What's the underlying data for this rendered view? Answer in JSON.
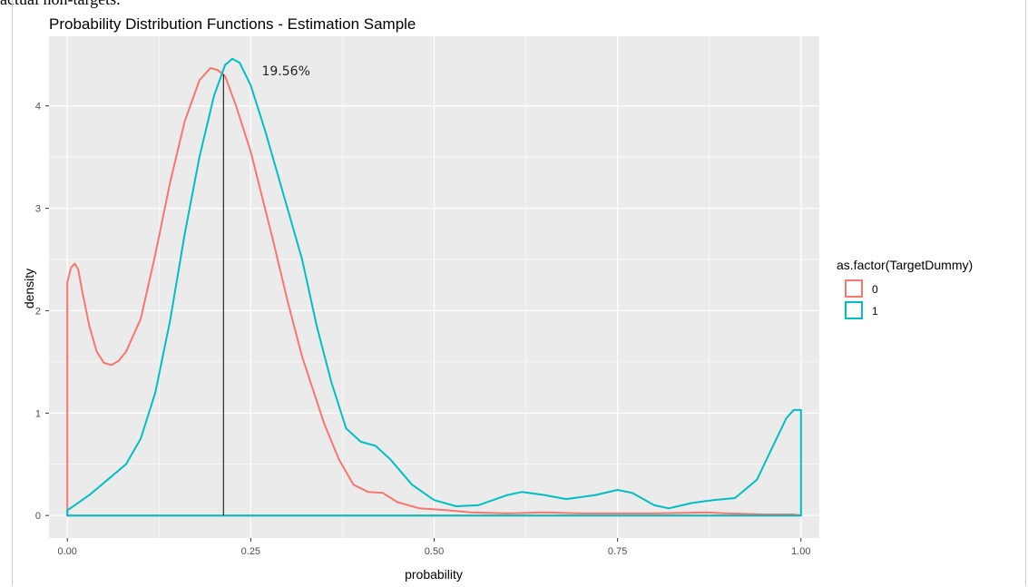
{
  "caption_fragment": "actual non-targets.",
  "chart_data": {
    "type": "line",
    "title": "Probability Distribution Functions - Estimation Sample",
    "xlabel": "probability",
    "ylabel": "density",
    "xlim": [
      -0.025,
      1.025
    ],
    "ylim": [
      -0.22,
      4.68
    ],
    "x_ticks": [
      0,
      0.25,
      0.5,
      0.75,
      1
    ],
    "x_tick_labels": [
      "0.00",
      "0.25",
      "0.50",
      "0.75",
      "1.00"
    ],
    "y_ticks": [
      0,
      1,
      2,
      3,
      4
    ],
    "y_tick_labels": [
      "0",
      "1",
      "2",
      "3",
      "4"
    ],
    "grid": true,
    "legend": {
      "title": "as.factor(TargetDummy)",
      "position": "right"
    },
    "vline": {
      "x": 0.2128,
      "y_top": 4.31
    },
    "annotation": {
      "text": "19.56%",
      "x": 0.265,
      "y": 4.3
    },
    "series": [
      {
        "name": "0",
        "color": "#F8766D",
        "points": [
          [
            0,
            2.28
          ],
          [
            0.005,
            2.42
          ],
          [
            0.01,
            2.46
          ],
          [
            0.015,
            2.4
          ],
          [
            0.02,
            2.2
          ],
          [
            0.03,
            1.85
          ],
          [
            0.04,
            1.6
          ],
          [
            0.05,
            1.49
          ],
          [
            0.06,
            1.47
          ],
          [
            0.07,
            1.51
          ],
          [
            0.08,
            1.6
          ],
          [
            0.1,
            1.92
          ],
          [
            0.12,
            2.55
          ],
          [
            0.14,
            3.25
          ],
          [
            0.16,
            3.85
          ],
          [
            0.18,
            4.25
          ],
          [
            0.195,
            4.37
          ],
          [
            0.205,
            4.35
          ],
          [
            0.215,
            4.29
          ],
          [
            0.23,
            4.0
          ],
          [
            0.25,
            3.55
          ],
          [
            0.28,
            2.7
          ],
          [
            0.3,
            2.1
          ],
          [
            0.32,
            1.55
          ],
          [
            0.35,
            0.9
          ],
          [
            0.37,
            0.55
          ],
          [
            0.39,
            0.3
          ],
          [
            0.41,
            0.23
          ],
          [
            0.43,
            0.22
          ],
          [
            0.45,
            0.13
          ],
          [
            0.48,
            0.07
          ],
          [
            0.52,
            0.05
          ],
          [
            0.55,
            0.03
          ],
          [
            0.6,
            0.02
          ],
          [
            0.65,
            0.03
          ],
          [
            0.7,
            0.02
          ],
          [
            0.8,
            0.02
          ],
          [
            0.87,
            0.03
          ],
          [
            0.9,
            0.02
          ],
          [
            0.95,
            0.01
          ],
          [
            0.99,
            0.01
          ],
          [
            1.0,
            0
          ]
        ]
      },
      {
        "name": "1",
        "color": "#00BFC4",
        "points": [
          [
            0,
            0.05
          ],
          [
            0.01,
            0.1
          ],
          [
            0.03,
            0.2
          ],
          [
            0.06,
            0.38
          ],
          [
            0.08,
            0.5
          ],
          [
            0.1,
            0.75
          ],
          [
            0.12,
            1.2
          ],
          [
            0.14,
            1.9
          ],
          [
            0.16,
            2.75
          ],
          [
            0.18,
            3.5
          ],
          [
            0.2,
            4.1
          ],
          [
            0.215,
            4.4
          ],
          [
            0.225,
            4.46
          ],
          [
            0.235,
            4.42
          ],
          [
            0.25,
            4.2
          ],
          [
            0.27,
            3.75
          ],
          [
            0.3,
            3.0
          ],
          [
            0.32,
            2.5
          ],
          [
            0.34,
            1.85
          ],
          [
            0.36,
            1.3
          ],
          [
            0.38,
            0.85
          ],
          [
            0.4,
            0.72
          ],
          [
            0.42,
            0.68
          ],
          [
            0.44,
            0.55
          ],
          [
            0.47,
            0.3
          ],
          [
            0.5,
            0.15
          ],
          [
            0.53,
            0.09
          ],
          [
            0.56,
            0.1
          ],
          [
            0.6,
            0.2
          ],
          [
            0.62,
            0.23
          ],
          [
            0.65,
            0.2
          ],
          [
            0.68,
            0.16
          ],
          [
            0.72,
            0.2
          ],
          [
            0.75,
            0.25
          ],
          [
            0.77,
            0.22
          ],
          [
            0.8,
            0.1
          ],
          [
            0.82,
            0.07
          ],
          [
            0.85,
            0.12
          ],
          [
            0.88,
            0.15
          ],
          [
            0.91,
            0.17
          ],
          [
            0.94,
            0.35
          ],
          [
            0.96,
            0.65
          ],
          [
            0.98,
            0.95
          ],
          [
            0.99,
            1.03
          ],
          [
            1.0,
            1.03
          ],
          [
            1.0,
            0
          ]
        ]
      }
    ]
  }
}
